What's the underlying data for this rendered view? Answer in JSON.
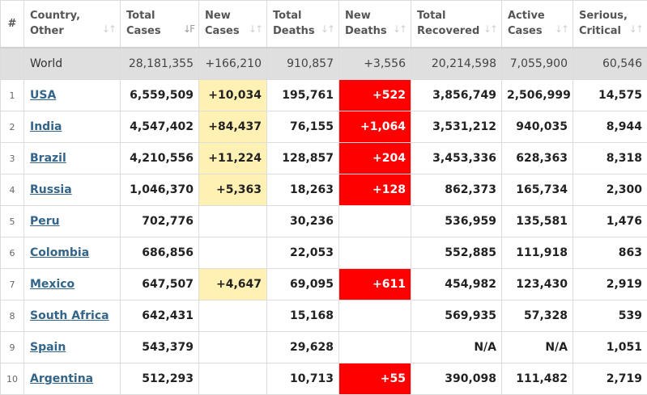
{
  "columns": [
    {
      "key": "num",
      "l1": "#",
      "l2": ""
    },
    {
      "key": "country",
      "l1": "Country,",
      "l2": "Other"
    },
    {
      "key": "total_cases",
      "l1": "Total",
      "l2": "Cases"
    },
    {
      "key": "new_cases",
      "l1": "New",
      "l2": "Cases"
    },
    {
      "key": "total_deaths",
      "l1": "Total",
      "l2": "Deaths"
    },
    {
      "key": "new_deaths",
      "l1": "New",
      "l2": "Deaths"
    },
    {
      "key": "total_recovered",
      "l1": "Total",
      "l2": "Recovered"
    },
    {
      "key": "active_cases",
      "l1": "Active",
      "l2": "Cases"
    },
    {
      "key": "serious",
      "l1": "Serious,",
      "l2": "Critical"
    }
  ],
  "world": {
    "country": "World",
    "total_cases": "28,181,355",
    "new_cases": "+166,210",
    "total_deaths": "910,857",
    "new_deaths": "+3,556",
    "total_recovered": "20,214,598",
    "active_cases": "7,055,900",
    "serious": "60,546"
  },
  "rows": [
    {
      "num": "1",
      "country": "USA",
      "total_cases": "6,559,509",
      "new_cases": "+10,034",
      "total_deaths": "195,761",
      "new_deaths": "+522",
      "total_recovered": "3,856,749",
      "active_cases": "2,506,999",
      "serious": "14,575"
    },
    {
      "num": "2",
      "country": "India",
      "total_cases": "4,547,402",
      "new_cases": "+84,437",
      "total_deaths": "76,155",
      "new_deaths": "+1,064",
      "total_recovered": "3,531,212",
      "active_cases": "940,035",
      "serious": "8,944"
    },
    {
      "num": "3",
      "country": "Brazil",
      "total_cases": "4,210,556",
      "new_cases": "+11,224",
      "total_deaths": "128,857",
      "new_deaths": "+204",
      "total_recovered": "3,453,336",
      "active_cases": "628,363",
      "serious": "8,318"
    },
    {
      "num": "4",
      "country": "Russia",
      "total_cases": "1,046,370",
      "new_cases": "+5,363",
      "total_deaths": "18,263",
      "new_deaths": "+128",
      "total_recovered": "862,373",
      "active_cases": "165,734",
      "serious": "2,300"
    },
    {
      "num": "5",
      "country": "Peru",
      "total_cases": "702,776",
      "new_cases": "",
      "total_deaths": "30,236",
      "new_deaths": "",
      "total_recovered": "536,959",
      "active_cases": "135,581",
      "serious": "1,476"
    },
    {
      "num": "6",
      "country": "Colombia",
      "total_cases": "686,856",
      "new_cases": "",
      "total_deaths": "22,053",
      "new_deaths": "",
      "total_recovered": "552,885",
      "active_cases": "111,918",
      "serious": "863"
    },
    {
      "num": "7",
      "country": "Mexico",
      "total_cases": "647,507",
      "new_cases": "+4,647",
      "total_deaths": "69,095",
      "new_deaths": "+611",
      "total_recovered": "454,982",
      "active_cases": "123,430",
      "serious": "2,919"
    },
    {
      "num": "8",
      "country": "South Africa",
      "total_cases": "642,431",
      "new_cases": "",
      "total_deaths": "15,168",
      "new_deaths": "",
      "total_recovered": "569,935",
      "active_cases": "57,328",
      "serious": "539"
    },
    {
      "num": "9",
      "country": "Spain",
      "total_cases": "543,379",
      "new_cases": "",
      "total_deaths": "29,628",
      "new_deaths": "",
      "total_recovered": "N/A",
      "active_cases": "N/A",
      "serious": "1,051"
    },
    {
      "num": "10",
      "country": "Argentina",
      "total_cases": "512,293",
      "new_cases": "",
      "total_deaths": "10,713",
      "new_deaths": "+55",
      "total_recovered": "390,098",
      "active_cases": "111,482",
      "serious": "2,719"
    }
  ],
  "colors": {
    "new_cases_highlight": "#fff0b3",
    "new_deaths_highlight": "#ff0000",
    "world_row_bg": "#dfdfdf",
    "country_link": "#33648a"
  }
}
